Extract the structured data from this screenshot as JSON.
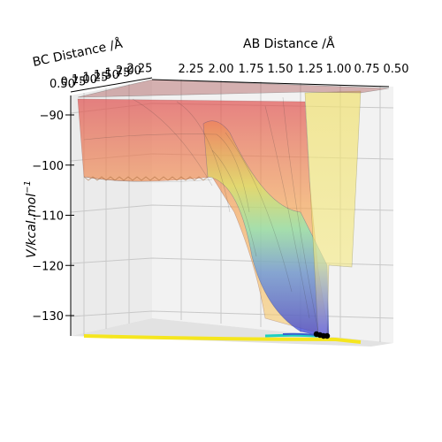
{
  "chart_data": {
    "type": "surface3d",
    "title": "",
    "xlabel": "AB Distance /Å",
    "ylabel": "BC Distance /Å",
    "zlabel": "V/kcal.mol",
    "zlabel_sup": "−1",
    "x_ticks": [
      "2.25",
      "2.00",
      "1.75",
      "1.50",
      "1.25",
      "1.00",
      "0.75",
      "0.50"
    ],
    "y_ticks": [
      "0.50",
      "0.75",
      "1.00",
      "1.25",
      "1.50",
      "1.75",
      "2.00",
      "2.25"
    ],
    "z_ticks": [
      "−90",
      "−100",
      "−110",
      "−120",
      "−130"
    ],
    "z_values": [
      -90,
      -100,
      -110,
      -120,
      -130
    ],
    "xlim": [
      0.5,
      2.25
    ],
    "ylim": [
      0.5,
      2.25
    ],
    "zlim": [
      -135,
      -85
    ],
    "grid": true,
    "colormap": "jet",
    "surface_alpha": 0.5,
    "trajectory": {
      "color": "#000000",
      "marker": "dots"
    },
    "contour_projection": {
      "colors": [
        "#f5e61e",
        "#1fd0c0",
        "#3a5fd0"
      ]
    }
  }
}
